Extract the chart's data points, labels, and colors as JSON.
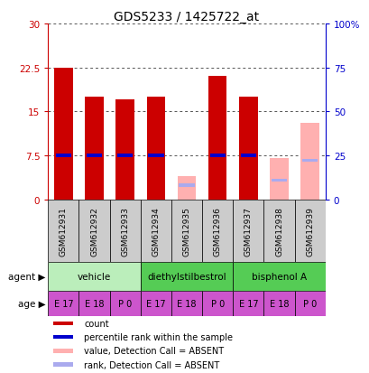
{
  "title": "GDS5233 / 1425722_at",
  "samples": [
    "GSM612931",
    "GSM612932",
    "GSM612933",
    "GSM612934",
    "GSM612935",
    "GSM612936",
    "GSM612937",
    "GSM612938",
    "GSM612939"
  ],
  "count_values": [
    22.5,
    17.5,
    17.0,
    17.5,
    0.0,
    21.0,
    17.5,
    0.0,
    0.0
  ],
  "rank_values": [
    25.0,
    25.0,
    25.0,
    25.0,
    0.0,
    25.0,
    25.0,
    0.0,
    0.0
  ],
  "absent_count": [
    0.0,
    0.0,
    0.0,
    0.0,
    4.0,
    0.0,
    0.0,
    7.0,
    13.0
  ],
  "absent_rank": [
    0.0,
    0.0,
    0.0,
    0.0,
    8.0,
    0.0,
    0.0,
    11.0,
    22.0
  ],
  "ylim_left": [
    0,
    30
  ],
  "ylim_right": [
    0,
    100
  ],
  "yticks_left": [
    0,
    7.5,
    15,
    22.5,
    30
  ],
  "yticks_right": [
    0,
    25,
    50,
    75,
    100
  ],
  "yticklabels_left": [
    "0",
    "7.5",
    "15",
    "22.5",
    "30"
  ],
  "yticklabels_right": [
    "0",
    "25",
    "50",
    "75",
    "100%"
  ],
  "bar_color_present": "#cc0000",
  "bar_color_absent": "#ffb0b0",
  "rank_color_present": "#0000cc",
  "rank_color_absent": "#aaaaee",
  "agent_group_labels": [
    "vehicle",
    "diethylstilbestrol",
    "bisphenol A"
  ],
  "agent_group_starts": [
    0,
    3,
    6
  ],
  "agent_group_ends": [
    3,
    6,
    9
  ],
  "agent_group_colors": [
    "#bbeebb",
    "#55cc55",
    "#55cc55"
  ],
  "age_groups": [
    "E 17",
    "E 18",
    "P 0",
    "E 17",
    "E 18",
    "P 0",
    "E 17",
    "E 18",
    "P 0"
  ],
  "age_color": "#cc55cc",
  "agent_row_label": "agent",
  "age_row_label": "age",
  "legend_items": [
    {
      "label": "count",
      "color": "#cc0000"
    },
    {
      "label": "percentile rank within the sample",
      "color": "#0000cc"
    },
    {
      "label": "value, Detection Call = ABSENT",
      "color": "#ffb0b0"
    },
    {
      "label": "rank, Detection Call = ABSENT",
      "color": "#aaaaee"
    }
  ],
  "bar_width": 0.6,
  "rank_bar_height": 0.5,
  "grid_color": "#555555",
  "sample_box_color": "#cccccc",
  "spine_color_left": "#cc0000",
  "spine_color_right": "#0000cc"
}
